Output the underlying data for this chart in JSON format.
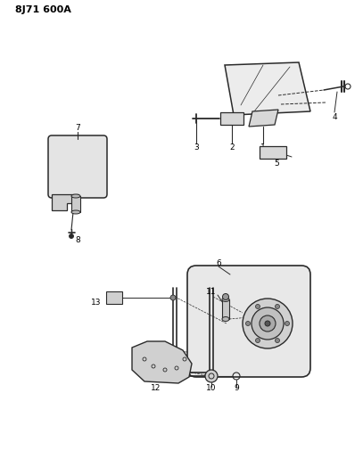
{
  "title": "8J71 600A",
  "bg_color": "#ffffff",
  "lc": "#2a2a2a",
  "tc": "#000000",
  "fig_width": 4.07,
  "fig_height": 5.33,
  "dpi": 100
}
